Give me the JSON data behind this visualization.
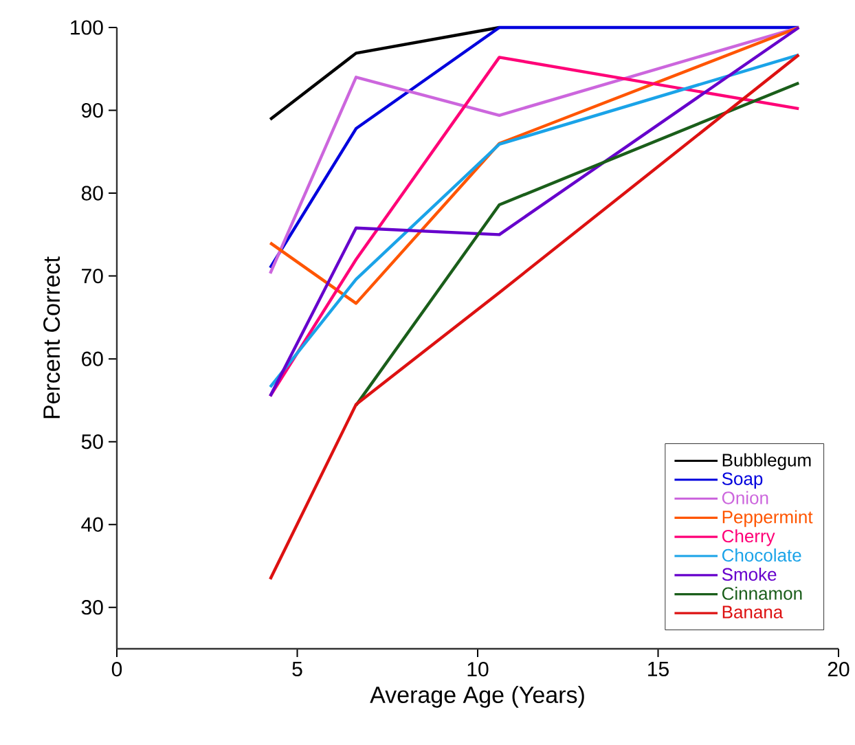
{
  "chart_data": {
    "type": "line",
    "xlabel": "Average Age (Years)",
    "ylabel": "Percent Correct",
    "x": [
      4.25,
      6.63,
      10.6,
      18.9
    ],
    "series": [
      {
        "name": "Bubblegum",
        "color": "#000000",
        "values": [
          88.9,
          96.9,
          100,
          null
        ]
      },
      {
        "name": "Soap",
        "color": "#0000dd",
        "values": [
          71,
          87.8,
          100,
          100
        ]
      },
      {
        "name": "Onion",
        "color": "#cc66dd",
        "values": [
          70.3,
          94,
          89.4,
          100
        ]
      },
      {
        "name": "Peppermint",
        "color": "#ff5500",
        "values": [
          74,
          66.7,
          86,
          100
        ]
      },
      {
        "name": "Cherry",
        "color": "#ff0077",
        "values": [
          55.5,
          72,
          96.4,
          90.2
        ]
      },
      {
        "name": "Chocolate",
        "color": "#1aa3e8",
        "values": [
          56.6,
          69.6,
          85.9,
          96.7
        ]
      },
      {
        "name": "Smoke",
        "color": "#6600cc",
        "values": [
          55.5,
          75.8,
          75,
          100
        ]
      },
      {
        "name": "Cinnamon",
        "color": "#1a5e1a",
        "values": [
          null,
          54.4,
          78.6,
          93.3
        ]
      },
      {
        "name": "Banana",
        "color": "#dd1111",
        "values": [
          33.4,
          54.5,
          68,
          96.7
        ]
      }
    ],
    "xlim": [
      0,
      20
    ],
    "ylim": [
      25,
      100
    ],
    "xticks": [
      0,
      5,
      10,
      15,
      20
    ],
    "yticks": [
      30,
      40,
      50,
      60,
      70,
      80,
      90,
      100
    ],
    "grid": false,
    "legend": "bottom right",
    "marker": "none",
    "line_style": "solid"
  }
}
